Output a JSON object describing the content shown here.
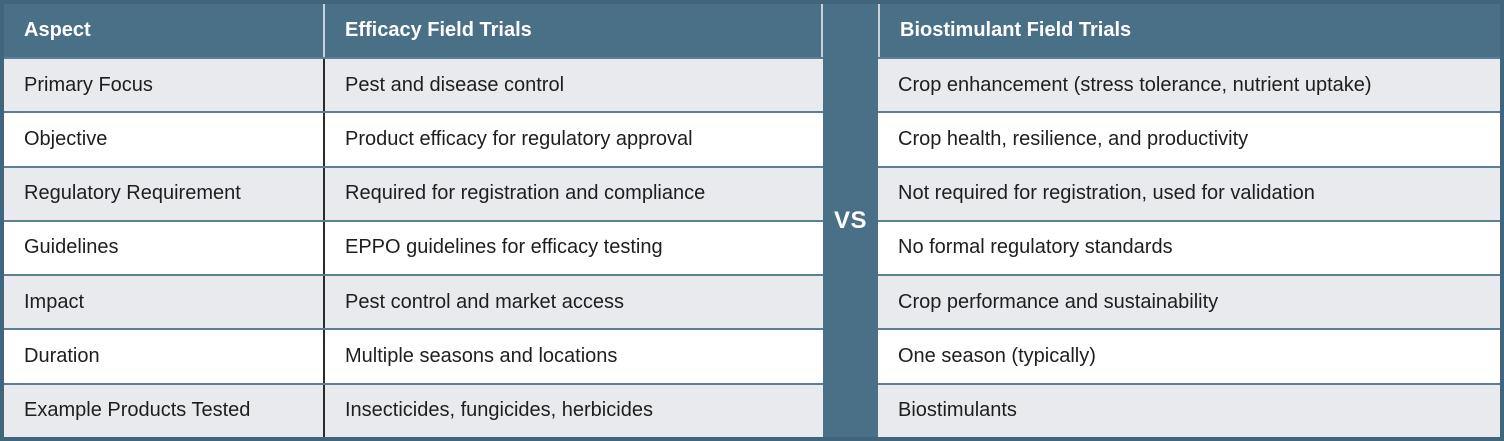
{
  "divider": {
    "label": "VS"
  },
  "table": {
    "headers": {
      "aspect": "Aspect",
      "efficacy": "Efficacy Field Trials",
      "biostimulant": "Biostimulant Field Trials"
    },
    "rows": [
      {
        "aspect": "Primary Focus",
        "efficacy": "Pest and disease control",
        "biostimulant": "Crop enhancement (stress tolerance, nutrient uptake)"
      },
      {
        "aspect": "Objective",
        "efficacy": "Product efficacy for regulatory approval",
        "biostimulant": "Crop health, resilience, and productivity"
      },
      {
        "aspect": "Regulatory Requirement",
        "efficacy": "Required for registration and compliance",
        "biostimulant": "Not required for registration, used for validation"
      },
      {
        "aspect": "Guidelines",
        "efficacy": "EPPO guidelines for efficacy testing",
        "biostimulant": "No formal regulatory standards"
      },
      {
        "aspect": "Impact",
        "efficacy": "Pest control and market access",
        "biostimulant": "Crop performance and sustainability"
      },
      {
        "aspect": "Duration",
        "efficacy": "Multiple seasons and locations",
        "biostimulant": "One season (typically)"
      },
      {
        "aspect": "Example Products Tested",
        "efficacy": "Insecticides, fungicides, herbicides",
        "biostimulant": "Biostimulants"
      }
    ]
  },
  "colors": {
    "header_teal": "#4a7087",
    "outer_border_teal": "#40657c",
    "row_separator_teal": "#5a7f96",
    "stripe_gray": "#e8eaed",
    "row_white": "#ffffff",
    "header_cell_separator": "#c8d3d9",
    "column_separator_dark": "#2b2b2b",
    "text_dark": "#1e1e1e",
    "text_white": "#ffffff"
  }
}
